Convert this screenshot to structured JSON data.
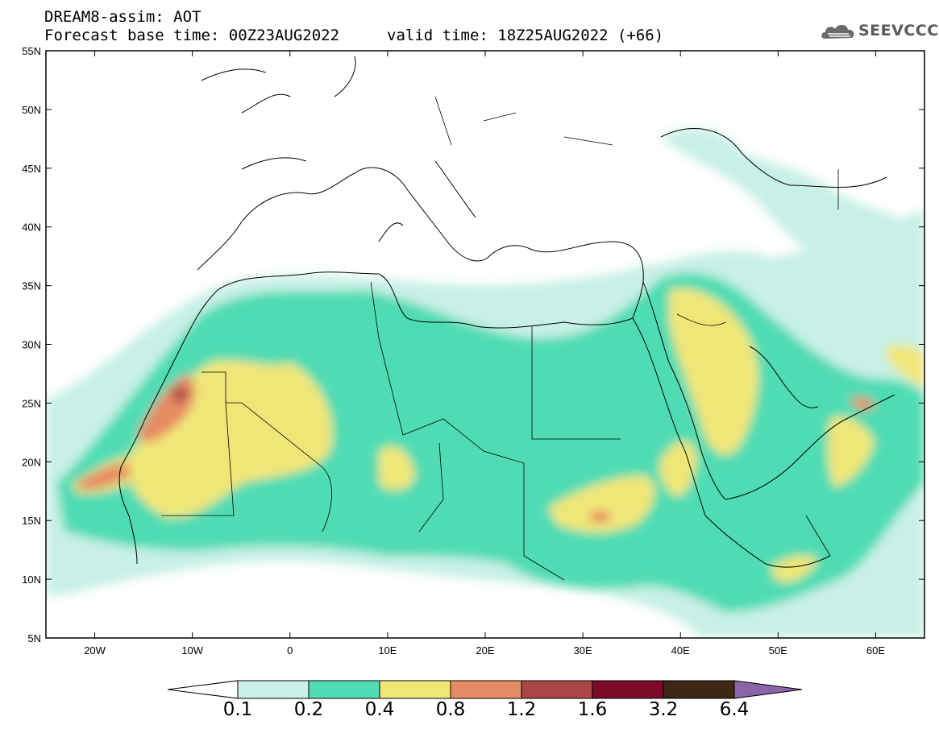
{
  "header": {
    "model": "DREAM8-assim: AOT",
    "base_time": "Forecast base time: 00Z23AUG2022",
    "valid_time": "valid time: 18Z25AUG2022 (+66)"
  },
  "logo": {
    "text": "SEEVCCC",
    "icon": "cloud-icon"
  },
  "map": {
    "lat_labels": [
      "55N",
      "50N",
      "45N",
      "40N",
      "35N",
      "30N",
      "25N",
      "20N",
      "15N",
      "10N",
      "5N"
    ],
    "lon_labels": [
      "20W",
      "10W",
      "0",
      "10E",
      "20E",
      "30E",
      "40E",
      "50E",
      "60E"
    ],
    "lat_range": [
      5,
      55
    ],
    "lon_range": [
      -25,
      65
    ]
  },
  "colorbar": {
    "labels": [
      "0.1",
      "0.2",
      "0.4",
      "0.8",
      "1.2",
      "1.6",
      "3.2",
      "6.4"
    ],
    "colors": [
      "#ffffff",
      "#c8f0e6",
      "#50dcb4",
      "#f0e678",
      "#e68c64",
      "#aa4646",
      "#7d0a28",
      "#3c2814",
      "#8c64aa"
    ]
  }
}
